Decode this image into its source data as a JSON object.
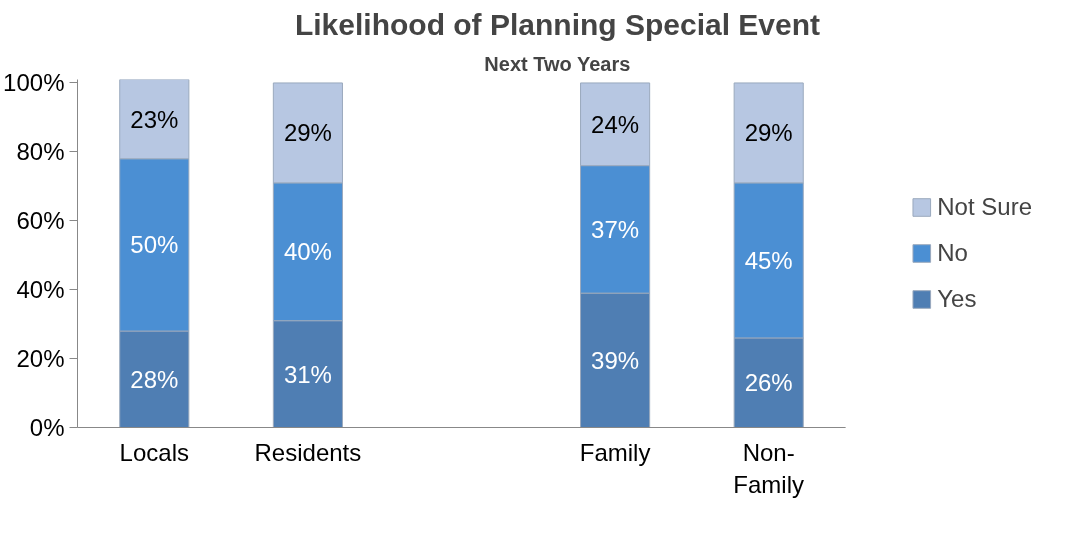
{
  "chart_data": {
    "type": "bar",
    "title": "Likelihood of Planning Special Event",
    "subtitle": "Next Two Years",
    "categories": [
      "Locals",
      "Residents",
      null,
      "Family",
      "Non-Family"
    ],
    "stacked": true,
    "legend": "right",
    "grid": false,
    "ylim": [
      0,
      101
    ],
    "yticks": [
      {
        "value": 0,
        "label": "0%"
      },
      {
        "value": 20,
        "label": "20%"
      },
      {
        "value": 40,
        "label": "40%"
      },
      {
        "value": 60,
        "label": "60%"
      },
      {
        "value": 80,
        "label": "80%"
      },
      {
        "value": 100,
        "label": "100%"
      }
    ],
    "series": [
      {
        "name": "Yes",
        "color": "#4f7eb3",
        "values": [
          28,
          31,
          null,
          39,
          26
        ],
        "value_labels": [
          "28%",
          "31%",
          null,
          "39%",
          "26%"
        ]
      },
      {
        "name": "No",
        "color": "#4b8fd3",
        "values": [
          50,
          40,
          null,
          37,
          45
        ],
        "value_labels": [
          "50%",
          "40%",
          null,
          "37%",
          "45%"
        ]
      },
      {
        "name": "Not Sure",
        "color": "#b7c7e2",
        "values": [
          23,
          29,
          null,
          24,
          29
        ],
        "value_labels": [
          "23%",
          "29%",
          null,
          "24%",
          "29%"
        ]
      }
    ]
  }
}
